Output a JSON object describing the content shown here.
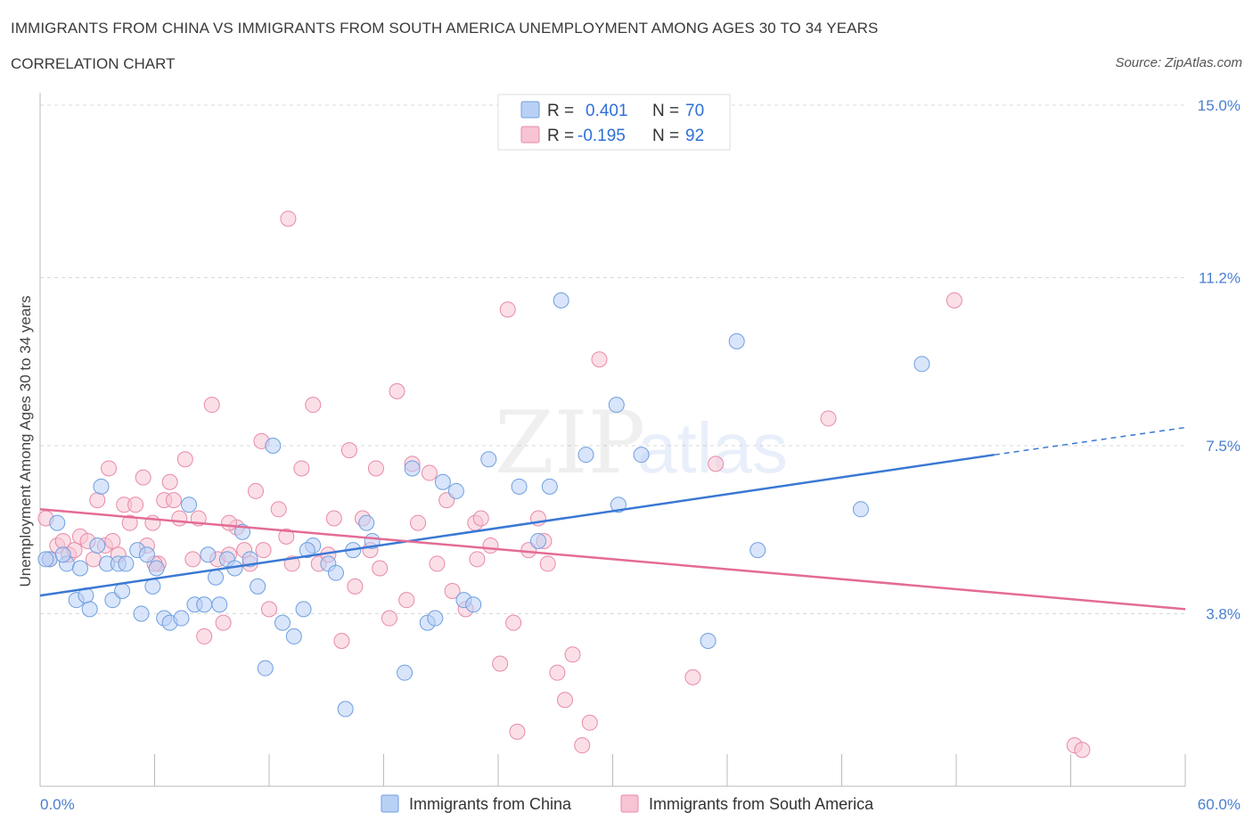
{
  "title": "IMMIGRANTS FROM CHINA VS IMMIGRANTS FROM SOUTH AMERICA UNEMPLOYMENT AMONG AGES 30 TO 34 YEARS",
  "subtitle": "CORRELATION CHART",
  "source": "Source: ZipAtlas.com",
  "watermark": {
    "zip": "ZIP",
    "atlas": "atlas"
  },
  "colors": {
    "china_fill": "#b9d0f5",
    "china_stroke": "#6f9fe0",
    "china_line": "#3a78d4",
    "sa_fill": "#f7c4d3",
    "sa_stroke": "#e88aa8",
    "sa_line": "#e46b96",
    "axis_text": "#4a7fd0",
    "grid": "#d9d9d9"
  },
  "legend": {
    "china": {
      "r_label": "R =",
      "r_value": "0.401",
      "n_label": "N =",
      "n_value": "70"
    },
    "sa": {
      "r_label": "R =",
      "r_value": "-0.195",
      "n_label": "N =",
      "n_value": "92"
    }
  },
  "chart_data": {
    "type": "scatter",
    "title": "IMMIGRANTS FROM CHINA VS IMMIGRANTS FROM SOUTH AMERICA UNEMPLOYMENT AMONG AGES 30 TO 34 YEARS",
    "xlabel": "",
    "ylabel": "Unemployment Among Ages 30 to 34 years",
    "xlim": [
      0,
      60
    ],
    "ylim": [
      0,
      15
    ],
    "x_tick_labels": [
      "0.0%",
      "60.0%"
    ],
    "y_ticks": [
      3.8,
      7.5,
      11.2,
      15.0
    ],
    "y_tick_labels": [
      "3.8%",
      "7.5%",
      "11.2%",
      "15.0%"
    ],
    "grid": true,
    "series": [
      {
        "name": "Immigrants from China",
        "trend": {
          "x": [
            0,
            50
          ],
          "y": [
            4.2,
            7.3
          ],
          "dashed_to": [
            60,
            7.9
          ]
        },
        "points": [
          [
            0.5,
            5.0
          ],
          [
            0.9,
            5.8
          ],
          [
            1.4,
            4.9
          ],
          [
            1.9,
            4.1
          ],
          [
            2.1,
            4.8
          ],
          [
            2.4,
            4.2
          ],
          [
            2.6,
            3.9
          ],
          [
            3.0,
            5.3
          ],
          [
            3.2,
            6.6
          ],
          [
            3.5,
            4.9
          ],
          [
            3.8,
            4.1
          ],
          [
            4.1,
            4.9
          ],
          [
            4.3,
            4.3
          ],
          [
            4.5,
            4.9
          ],
          [
            5.1,
            5.2
          ],
          [
            5.3,
            3.8
          ],
          [
            5.6,
            5.1
          ],
          [
            5.9,
            4.4
          ],
          [
            6.1,
            4.8
          ],
          [
            6.5,
            3.7
          ],
          [
            6.8,
            3.6
          ],
          [
            7.4,
            3.7
          ],
          [
            7.8,
            6.2
          ],
          [
            8.1,
            4.0
          ],
          [
            8.8,
            5.1
          ],
          [
            9.2,
            4.6
          ],
          [
            9.4,
            4.0
          ],
          [
            9.8,
            5.0
          ],
          [
            10.2,
            4.8
          ],
          [
            10.6,
            5.6
          ],
          [
            11.0,
            5.0
          ],
          [
            11.4,
            4.4
          ],
          [
            11.8,
            2.6
          ],
          [
            12.2,
            7.5
          ],
          [
            12.7,
            3.6
          ],
          [
            13.3,
            3.3
          ],
          [
            13.8,
            3.9
          ],
          [
            14.3,
            5.3
          ],
          [
            15.1,
            4.9
          ],
          [
            15.5,
            4.7
          ],
          [
            16.0,
            1.7
          ],
          [
            16.4,
            5.2
          ],
          [
            17.1,
            5.8
          ],
          [
            19.1,
            2.5
          ],
          [
            19.5,
            7.0
          ],
          [
            20.3,
            3.6
          ],
          [
            21.1,
            6.7
          ],
          [
            21.8,
            6.5
          ],
          [
            22.2,
            4.1
          ],
          [
            23.5,
            7.2
          ],
          [
            26.1,
            5.4
          ],
          [
            26.7,
            6.6
          ],
          [
            27.3,
            10.7
          ],
          [
            28.6,
            7.3
          ],
          [
            30.2,
            8.4
          ],
          [
            30.3,
            6.2
          ],
          [
            35.0,
            3.2
          ],
          [
            36.5,
            9.8
          ],
          [
            46.2,
            9.3
          ],
          [
            0.3,
            5.0
          ],
          [
            1.2,
            5.1
          ],
          [
            8.6,
            4.0
          ],
          [
            14.0,
            5.2
          ],
          [
            17.4,
            5.4
          ],
          [
            20.7,
            3.7
          ],
          [
            22.7,
            4.0
          ],
          [
            25.1,
            6.6
          ],
          [
            31.5,
            7.3
          ],
          [
            37.6,
            5.2
          ],
          [
            43.0,
            6.1
          ]
        ]
      },
      {
        "name": "Immigrants from South America",
        "trend": {
          "x": [
            0,
            60
          ],
          "y": [
            6.1,
            3.9
          ]
        },
        "points": [
          [
            0.3,
            5.9
          ],
          [
            0.5,
            5.0
          ],
          [
            0.9,
            5.3
          ],
          [
            1.2,
            5.4
          ],
          [
            1.5,
            5.1
          ],
          [
            1.8,
            5.2
          ],
          [
            2.1,
            5.5
          ],
          [
            2.5,
            5.4
          ],
          [
            2.8,
            5.0
          ],
          [
            3.0,
            6.3
          ],
          [
            3.4,
            5.3
          ],
          [
            3.8,
            5.4
          ],
          [
            4.1,
            5.1
          ],
          [
            4.4,
            6.2
          ],
          [
            4.7,
            5.8
          ],
          [
            5.0,
            6.2
          ],
          [
            5.4,
            6.8
          ],
          [
            5.6,
            5.3
          ],
          [
            5.9,
            5.8
          ],
          [
            6.2,
            4.9
          ],
          [
            6.5,
            6.3
          ],
          [
            6.8,
            6.7
          ],
          [
            7.0,
            6.3
          ],
          [
            7.3,
            5.9
          ],
          [
            7.6,
            7.2
          ],
          [
            8.0,
            5.0
          ],
          [
            8.3,
            5.9
          ],
          [
            8.6,
            3.3
          ],
          [
            9.0,
            8.4
          ],
          [
            9.3,
            5.0
          ],
          [
            9.6,
            3.6
          ],
          [
            9.9,
            5.1
          ],
          [
            10.3,
            5.7
          ],
          [
            10.7,
            5.2
          ],
          [
            11.0,
            4.9
          ],
          [
            11.3,
            6.5
          ],
          [
            11.6,
            7.6
          ],
          [
            12.0,
            3.9
          ],
          [
            12.5,
            6.1
          ],
          [
            12.9,
            5.5
          ],
          [
            13.2,
            4.9
          ],
          [
            13.7,
            7.0
          ],
          [
            14.3,
            8.4
          ],
          [
            14.6,
            4.9
          ],
          [
            15.1,
            5.1
          ],
          [
            15.4,
            5.9
          ],
          [
            15.8,
            3.2
          ],
          [
            16.2,
            7.4
          ],
          [
            16.5,
            4.4
          ],
          [
            16.9,
            5.9
          ],
          [
            17.3,
            5.2
          ],
          [
            17.8,
            4.8
          ],
          [
            18.3,
            3.7
          ],
          [
            18.7,
            8.7
          ],
          [
            19.2,
            4.1
          ],
          [
            19.8,
            5.8
          ],
          [
            20.4,
            6.9
          ],
          [
            20.8,
            4.9
          ],
          [
            21.3,
            6.3
          ],
          [
            21.6,
            4.3
          ],
          [
            22.3,
            3.9
          ],
          [
            22.8,
            5.8
          ],
          [
            23.1,
            5.9
          ],
          [
            23.6,
            5.3
          ],
          [
            24.1,
            2.7
          ],
          [
            24.5,
            10.5
          ],
          [
            25.0,
            1.2
          ],
          [
            25.6,
            5.2
          ],
          [
            26.1,
            5.9
          ],
          [
            26.6,
            4.9
          ],
          [
            27.1,
            2.5
          ],
          [
            27.5,
            1.9
          ],
          [
            27.9,
            2.9
          ],
          [
            28.4,
            0.9
          ],
          [
            28.8,
            1.4
          ],
          [
            29.3,
            9.4
          ],
          [
            34.2,
            2.4
          ],
          [
            35.4,
            7.1
          ],
          [
            41.3,
            8.1
          ],
          [
            47.9,
            10.7
          ],
          [
            54.2,
            0.9
          ],
          [
            54.6,
            0.8
          ],
          [
            3.6,
            7.0
          ],
          [
            6.0,
            4.9
          ],
          [
            9.9,
            5.8
          ],
          [
            13.0,
            12.5
          ],
          [
            17.6,
            7.0
          ],
          [
            19.5,
            7.1
          ],
          [
            22.9,
            5.0
          ],
          [
            24.8,
            3.6
          ],
          [
            26.4,
            5.4
          ],
          [
            11.7,
            5.2
          ]
        ]
      }
    ]
  }
}
